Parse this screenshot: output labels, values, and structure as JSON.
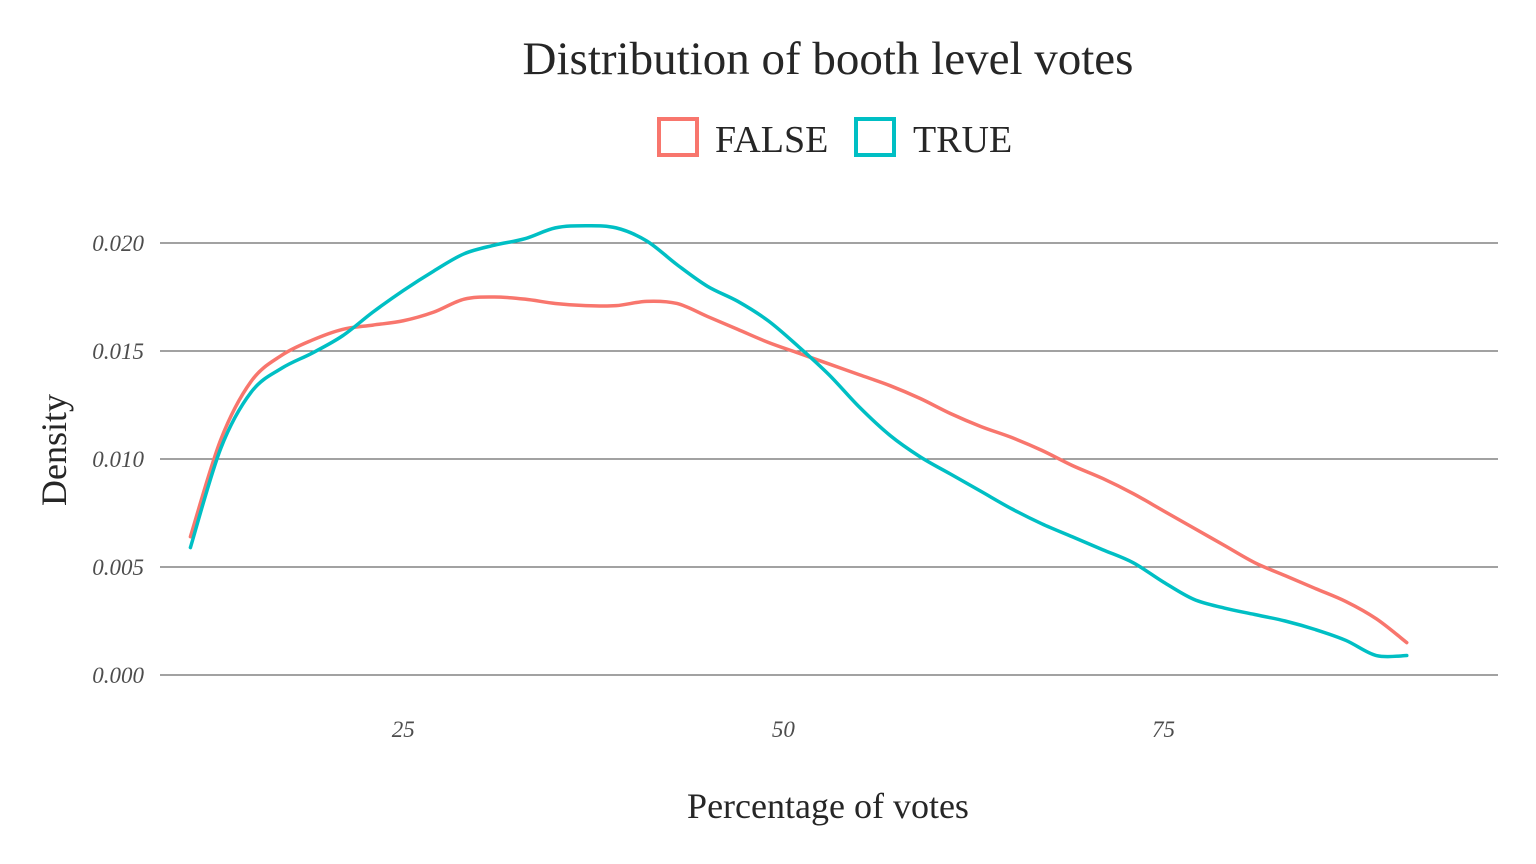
{
  "chart_data": {
    "type": "line",
    "title": "Distribution of booth level votes",
    "xlabel": "Percentage of votes",
    "ylabel": "Density",
    "xlim": [
      9,
      97
    ],
    "ylim": [
      0,
      0.02
    ],
    "x_ticks": [
      25,
      50,
      75
    ],
    "x_tick_labels": [
      "25",
      "50",
      "75"
    ],
    "y_ticks": [
      0,
      0.005,
      0.01,
      0.015,
      0.02
    ],
    "y_tick_labels": [
      "0.000",
      "0.005",
      "0.010",
      "0.015",
      "0.020"
    ],
    "grid": "horizontal",
    "legend": "top",
    "series": [
      {
        "name": "FALSE",
        "color": "#F8766D",
        "x": [
          11,
          13,
          15,
          17,
          19,
          21,
          23,
          25,
          27,
          29,
          31,
          33,
          35,
          37,
          39,
          41,
          43,
          45,
          47,
          49,
          51,
          53,
          55,
          57,
          59,
          61,
          63,
          65,
          67,
          69,
          71,
          73,
          75,
          77,
          79,
          81,
          83,
          85,
          87,
          89,
          91
        ],
        "y": [
          0.0064,
          0.0109,
          0.0136,
          0.0148,
          0.0155,
          0.016,
          0.0162,
          0.0164,
          0.0168,
          0.0174,
          0.0175,
          0.0174,
          0.0172,
          0.0171,
          0.0171,
          0.0173,
          0.0172,
          0.0166,
          0.016,
          0.0154,
          0.0149,
          0.0144,
          0.0139,
          0.0134,
          0.0128,
          0.0121,
          0.0115,
          0.011,
          0.0104,
          0.0097,
          0.0091,
          0.0084,
          0.0076,
          0.0068,
          0.006,
          0.0052,
          0.0046,
          0.004,
          0.0034,
          0.0026,
          0.0015
        ]
      },
      {
        "name": "TRUE",
        "color": "#00BFC4",
        "x": [
          11,
          13,
          15,
          17,
          19,
          21,
          23,
          25,
          27,
          29,
          31,
          33,
          35,
          37,
          39,
          41,
          43,
          45,
          47,
          49,
          51,
          53,
          55,
          57,
          59,
          61,
          63,
          65,
          67,
          69,
          71,
          73,
          75,
          77,
          79,
          81,
          83,
          85,
          87,
          89,
          91
        ],
        "y": [
          0.0059,
          0.0105,
          0.0131,
          0.0142,
          0.0149,
          0.0157,
          0.0168,
          0.0178,
          0.0187,
          0.0195,
          0.0199,
          0.0202,
          0.0207,
          0.0208,
          0.0207,
          0.0201,
          0.019,
          0.018,
          0.0173,
          0.0164,
          0.0152,
          0.0139,
          0.0124,
          0.0111,
          0.0101,
          0.0093,
          0.0085,
          0.0077,
          0.007,
          0.0064,
          0.0058,
          0.0052,
          0.0043,
          0.0035,
          0.0031,
          0.0028,
          0.0025,
          0.0021,
          0.0016,
          0.0009,
          0.0009
        ]
      }
    ]
  }
}
